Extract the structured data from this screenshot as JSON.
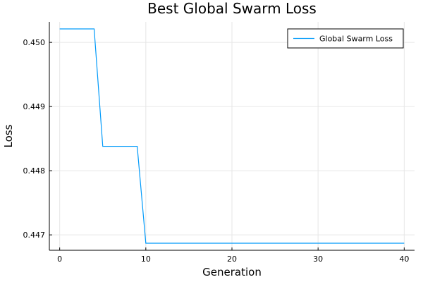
{
  "chart_data": {
    "type": "line",
    "title": "Best Global Swarm Loss",
    "xlabel": "Generation",
    "ylabel": "Loss",
    "xlim": [
      -1.2,
      41.2
    ],
    "ylim": [
      0.44676,
      0.45032
    ],
    "xticks": [
      0,
      10,
      20,
      30,
      40
    ],
    "xtick_labels": [
      "0",
      "10",
      "20",
      "30",
      "40"
    ],
    "yticks": [
      0.447,
      0.448,
      0.449,
      0.45
    ],
    "ytick_labels": [
      "0.447",
      "0.448",
      "0.449",
      "0.450"
    ],
    "grid": true,
    "legend_position": "top-right",
    "series": [
      {
        "name": "Global Swarm Loss",
        "color": "#009AFA",
        "x": [
          0,
          4,
          5,
          9,
          10,
          40
        ],
        "y": [
          0.45021,
          0.45021,
          0.44838,
          0.44838,
          0.44687,
          0.44687
        ]
      }
    ]
  }
}
